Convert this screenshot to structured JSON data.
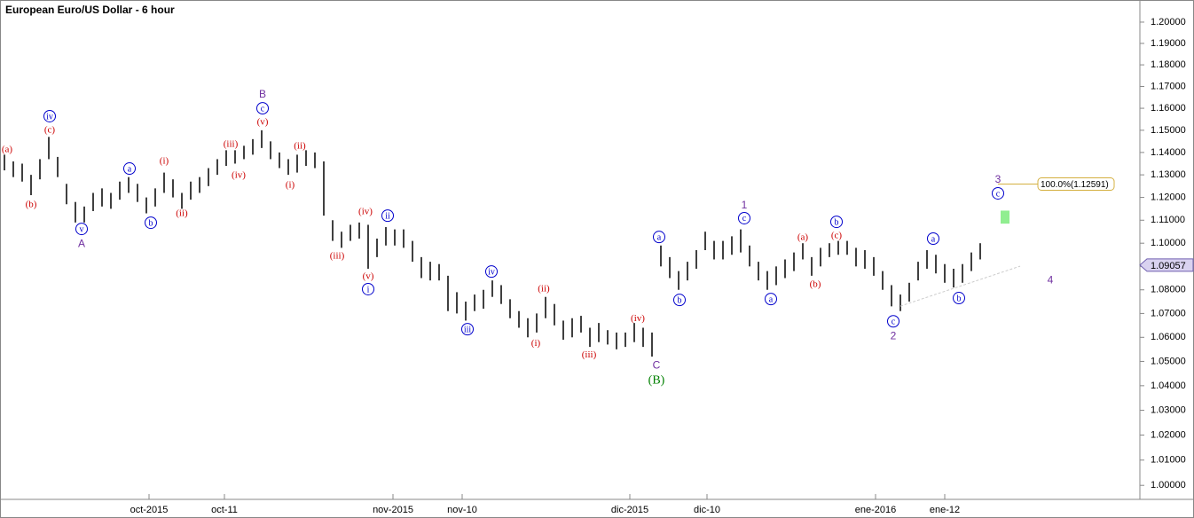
{
  "chart_data": {
    "type": "ohlc",
    "title": "European Euro/US Dollar - 6 hour",
    "log_scale": true,
    "color": "#000000",
    "xlim": [
      -0.5,
      128
    ],
    "ylim": [
      0.9945,
      1.2105
    ],
    "xticks": [
      {
        "value": 16.3,
        "label": "oct-2015"
      },
      {
        "value": 24.8,
        "label": "oct-11"
      },
      {
        "value": 43.8,
        "label": "nov-2015"
      },
      {
        "value": 51.6,
        "label": "nov-10"
      },
      {
        "value": 70.5,
        "label": "dic-2015"
      },
      {
        "value": 79.2,
        "label": "dic-10"
      },
      {
        "value": 98.2,
        "label": "ene-2016"
      },
      {
        "value": 106,
        "label": "ene-12"
      }
    ],
    "yticks": [
      {
        "value": 1.0,
        "label": "1.00000"
      },
      {
        "value": 1.01,
        "label": "1.01000"
      },
      {
        "value": 1.02,
        "label": "1.02000"
      },
      {
        "value": 1.03,
        "label": "1.03000"
      },
      {
        "value": 1.04,
        "label": "1.04000"
      },
      {
        "value": 1.05,
        "label": "1.05000"
      },
      {
        "value": 1.06,
        "label": "1.06000"
      },
      {
        "value": 1.07,
        "label": "1.07000"
      },
      {
        "value": 1.08,
        "label": "1.08000"
      },
      {
        "value": 1.09,
        "label": "1.09000"
      },
      {
        "value": 1.1,
        "label": "1.10000"
      },
      {
        "value": 1.11,
        "label": "1.11000"
      },
      {
        "value": 1.12,
        "label": "1.12000"
      },
      {
        "value": 1.13,
        "label": "1.13000"
      },
      {
        "value": 1.14,
        "label": "1.14000"
      },
      {
        "value": 1.15,
        "label": "1.15000"
      },
      {
        "value": 1.16,
        "label": "1.16000"
      },
      {
        "value": 1.17,
        "label": "1.17000"
      },
      {
        "value": 1.18,
        "label": "1.18000"
      },
      {
        "value": 1.19,
        "label": "1.19000"
      },
      {
        "value": 1.2,
        "label": "1.20000"
      }
    ],
    "high": [
      1.139,
      1.136,
      1.135,
      1.13,
      1.137,
      1.147,
      1.138,
      1.126,
      1.118,
      1.116,
      1.122,
      1.124,
      1.122,
      1.127,
      1.129,
      1.126,
      1.12,
      1.124,
      1.131,
      1.128,
      1.122,
      1.127,
      1.129,
      1.133,
      1.137,
      1.141,
      1.141,
      1.143,
      1.146,
      1.15,
      1.145,
      1.14,
      1.137,
      1.139,
      1.141,
      1.14,
      1.136,
      1.11,
      1.105,
      1.108,
      1.109,
      1.108,
      1.102,
      1.107,
      1.106,
      1.106,
      1.101,
      1.094,
      1.092,
      1.091,
      1.086,
      1.079,
      1.075,
      1.078,
      1.08,
      1.084,
      1.082,
      1.076,
      1.071,
      1.068,
      1.07,
      1.077,
      1.074,
      1.067,
      1.068,
      1.069,
      1.064,
      1.066,
      1.063,
      1.062,
      1.062,
      1.066,
      1.064,
      1.062,
      1.099,
      1.094,
      1.088,
      1.092,
      1.097,
      1.105,
      1.101,
      1.101,
      1.103,
      1.106,
      1.099,
      1.092,
      1.088,
      1.09,
      1.093,
      1.096,
      1.1,
      1.094,
      1.098,
      1.1,
      1.101,
      1.101,
      1.098,
      1.097,
      1.094,
      1.088,
      1.082,
      1.078,
      1.083,
      1.092,
      1.097,
      1.095,
      1.091,
      1.089,
      1.091,
      1.096,
      1.1
    ],
    "low": [
      1.132,
      1.129,
      1.127,
      1.121,
      1.128,
      1.137,
      1.129,
      1.117,
      1.109,
      1.109,
      1.114,
      1.116,
      1.115,
      1.119,
      1.122,
      1.118,
      1.113,
      1.116,
      1.122,
      1.12,
      1.115,
      1.119,
      1.122,
      1.125,
      1.13,
      1.134,
      1.135,
      1.137,
      1.139,
      1.142,
      1.137,
      1.133,
      1.13,
      1.131,
      1.134,
      1.133,
      1.112,
      1.101,
      1.098,
      1.101,
      1.102,
      1.089,
      1.094,
      1.099,
      1.099,
      1.098,
      1.092,
      1.085,
      1.084,
      1.084,
      1.071,
      1.07,
      1.067,
      1.071,
      1.072,
      1.077,
      1.074,
      1.068,
      1.064,
      1.06,
      1.062,
      1.068,
      1.065,
      1.059,
      1.06,
      1.062,
      1.056,
      1.058,
      1.057,
      1.055,
      1.056,
      1.058,
      1.056,
      1.052,
      1.09,
      1.085,
      1.08,
      1.084,
      1.089,
      1.097,
      1.093,
      1.093,
      1.095,
      1.096,
      1.09,
      1.084,
      1.08,
      1.082,
      1.085,
      1.088,
      1.093,
      1.086,
      1.09,
      1.094,
      1.095,
      1.095,
      1.09,
      1.089,
      1.086,
      1.08,
      1.073,
      1.071,
      1.075,
      1.084,
      1.089,
      1.087,
      1.083,
      1.081,
      1.083,
      1.088,
      1.093
    ],
    "styles": {
      "red": "#cc0000",
      "blue": "#0000cc",
      "purple": "#7030a0",
      "green": "#008000"
    },
    "annotations": [
      {
        "text": "(a)",
        "x": 0.3,
        "y": 1.1415,
        "style": "red"
      },
      {
        "text": "(b)",
        "x": 3,
        "y": 1.1171,
        "style": "red"
      },
      {
        "text": "iv",
        "x": 5.1,
        "y": 1.1564,
        "style": "blue"
      },
      {
        "text": "(c)",
        "x": 5.1,
        "y": 1.1503,
        "style": "red"
      },
      {
        "text": "v",
        "x": 8.7,
        "y": 1.1062,
        "style": "blue"
      },
      {
        "text": "A",
        "x": 8.7,
        "y": 1.1,
        "style": "purple"
      },
      {
        "text": "a",
        "x": 14.1,
        "y": 1.1328,
        "style": "blue"
      },
      {
        "text": "b",
        "x": 16.5,
        "y": 1.1089,
        "style": "blue"
      },
      {
        "text": "(i)",
        "x": 18,
        "y": 1.1364,
        "style": "red"
      },
      {
        "text": "(ii)",
        "x": 20,
        "y": 1.1132,
        "style": "red"
      },
      {
        "text": "(iii)",
        "x": 25.5,
        "y": 1.1439,
        "style": "red"
      },
      {
        "text": "(iv)",
        "x": 26.4,
        "y": 1.13,
        "style": "red"
      },
      {
        "text": "B",
        "x": 29.1,
        "y": 1.1665,
        "style": "purple"
      },
      {
        "text": "c",
        "x": 29.1,
        "y": 1.16,
        "style": "blue"
      },
      {
        "text": "(v)",
        "x": 29.1,
        "y": 1.154,
        "style": "red"
      },
      {
        "text": "(ii)",
        "x": 33.3,
        "y": 1.1431,
        "style": "red"
      },
      {
        "text": "(i)",
        "x": 32.2,
        "y": 1.1257,
        "style": "red"
      },
      {
        "text": "(iii)",
        "x": 37.5,
        "y": 1.0947,
        "style": "red"
      },
      {
        "text": "(iv)",
        "x": 40.7,
        "y": 1.114,
        "style": "red"
      },
      {
        "text": "ii",
        "x": 43.2,
        "y": 1.112,
        "style": "blue"
      },
      {
        "text": "(v)",
        "x": 41,
        "y": 1.0859,
        "style": "red"
      },
      {
        "text": "i",
        "x": 41,
        "y": 1.0803,
        "style": "blue"
      },
      {
        "text": "iv",
        "x": 54.9,
        "y": 1.0878,
        "style": "blue"
      },
      {
        "text": "iii",
        "x": 52.2,
        "y": 1.0634,
        "style": "blue"
      },
      {
        "text": "(ii)",
        "x": 60.8,
        "y": 1.0806,
        "style": "red"
      },
      {
        "text": "(i)",
        "x": 59.9,
        "y": 1.0578,
        "style": "red"
      },
      {
        "text": "(iii)",
        "x": 65.9,
        "y": 1.053,
        "style": "red"
      },
      {
        "text": "(iv)",
        "x": 71.4,
        "y": 1.0682,
        "style": "red"
      },
      {
        "text": "C",
        "x": 73.5,
        "y": 1.0486,
        "style": "purple"
      },
      {
        "text": "(B)",
        "x": 73.5,
        "y": 1.0424,
        "style": "green"
      },
      {
        "text": "a",
        "x": 73.8,
        "y": 1.1027,
        "style": "blue"
      },
      {
        "text": "b",
        "x": 76.1,
        "y": 1.0757,
        "style": "blue"
      },
      {
        "text": "1",
        "x": 83.4,
        "y": 1.1167,
        "style": "purple"
      },
      {
        "text": "c",
        "x": 83.4,
        "y": 1.1109,
        "style": "blue"
      },
      {
        "text": "a",
        "x": 86.4,
        "y": 1.0761,
        "style": "blue"
      },
      {
        "text": "(a)",
        "x": 90,
        "y": 1.1027,
        "style": "red"
      },
      {
        "text": "(b)",
        "x": 91.4,
        "y": 1.0825,
        "style": "red"
      },
      {
        "text": "(c)",
        "x": 93.8,
        "y": 1.1035,
        "style": "red"
      },
      {
        "text": "b",
        "x": 93.8,
        "y": 1.1093,
        "style": "blue"
      },
      {
        "text": "c",
        "x": 100.2,
        "y": 1.0667,
        "style": "blue"
      },
      {
        "text": "2",
        "x": 100.2,
        "y": 1.0608,
        "style": "purple"
      },
      {
        "text": "a",
        "x": 104.7,
        "y": 1.102,
        "style": "blue"
      },
      {
        "text": "b",
        "x": 107.6,
        "y": 1.0765,
        "style": "blue"
      },
      {
        "text": "3",
        "x": 112,
        "y": 1.1281,
        "style": "purple"
      },
      {
        "text": "c",
        "x": 112,
        "y": 1.1218,
        "style": "blue"
      },
      {
        "text": "4",
        "x": 117.9,
        "y": 1.0844,
        "style": "purple"
      }
    ],
    "target_zone": {
      "x": [
        112.3,
        113.3
      ],
      "y": [
        1.1085,
        1.1142
      ],
      "color": "#90ee90"
    },
    "trendline": {
      "x": [
        101,
        114.5
      ],
      "y": [
        1.0731,
        1.0901
      ],
      "color": "#cccccc"
    },
    "fib_level": {
      "x": 112,
      "value": 1.12591,
      "label": "100.0%(1.12591)",
      "color": "#d4b040"
    },
    "last_price": 1.09057
  }
}
